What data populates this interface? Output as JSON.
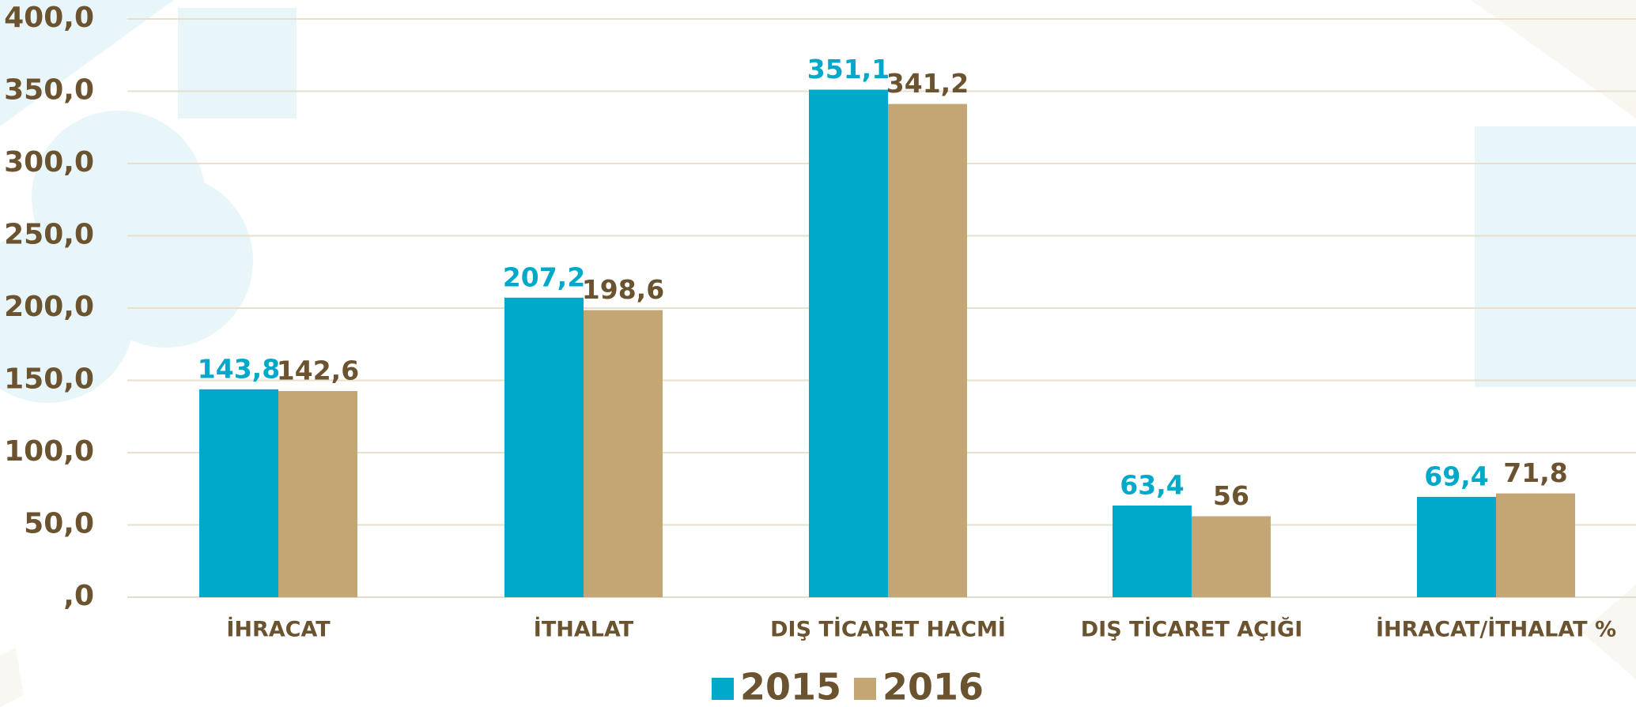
{
  "chart_data": {
    "type": "bar",
    "categories": [
      "İHRACAT",
      "İTHALAT",
      "DIŞ TİCARET HACMİ",
      "DIŞ TİCARET AÇIĞI",
      "İHRACAT/İTHALAT %"
    ],
    "series": [
      {
        "name": "2015",
        "color": "#00a9c9",
        "values": [
          143.8,
          207.2,
          351.1,
          63.4,
          69.4
        ],
        "value_labels": [
          "143,8",
          "207,2",
          "351,1",
          "63,4",
          "69,4"
        ]
      },
      {
        "name": "2016",
        "color": "#c4a574",
        "values": [
          142.6,
          198.6,
          341.2,
          56,
          71.8
        ],
        "value_labels": [
          "142,6",
          "198,6",
          "341,2",
          "56",
          "71,8"
        ]
      }
    ],
    "ylim": [
      0,
      400
    ],
    "yticks": [
      {
        "value": 0,
        "label": ",0"
      },
      {
        "value": 50,
        "label": "50,0"
      },
      {
        "value": 100,
        "label": "100,0"
      },
      {
        "value": 150,
        "label": "150,0"
      },
      {
        "value": 200,
        "label": "200,0"
      },
      {
        "value": 250,
        "label": "250,0"
      },
      {
        "value": 300,
        "label": "300,0"
      },
      {
        "value": 350,
        "label": "350,0"
      },
      {
        "value": 400,
        "label": "400,0"
      }
    ],
    "grid": true,
    "legend": "bottom"
  }
}
